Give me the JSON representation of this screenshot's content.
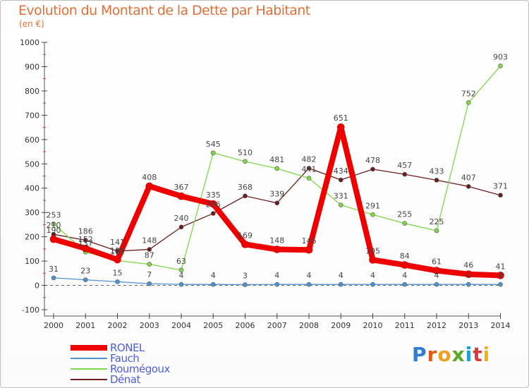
{
  "title": "Evolution du Montant de la Dette par Habitant",
  "subtitle": "(en €)",
  "logo": "Proxiti",
  "chart_data": {
    "type": "line",
    "x": [
      "2000",
      "2001",
      "2002",
      "2003",
      "2004",
      "2005",
      "2006",
      "2007",
      "2008",
      "2009",
      "2010",
      "2011",
      "2012",
      "2013",
      "2014"
    ],
    "ylim": [
      -100,
      1000
    ],
    "yticks": [
      "-100",
      "0",
      "100",
      "200",
      "300",
      "400",
      "500",
      "600",
      "700",
      "800",
      "900",
      "1000"
    ],
    "grid": false,
    "legend_position": "bottom-left",
    "series": [
      {
        "name": "Dénat",
        "color": "#6b1c1c",
        "values": [
          210,
          186,
          141,
          148,
          240,
          296,
          368,
          339,
          482,
          434,
          478,
          457,
          433,
          407,
          371
        ]
      },
      {
        "name": "Roumégoux",
        "color": "#7fd84a",
        "values": [
          253,
          137,
          102,
          87,
          63,
          545,
          510,
          481,
          441,
          331,
          291,
          255,
          225,
          752,
          903
        ]
      },
      {
        "name": "Fauch",
        "color": "#4f93cf",
        "values": [
          31,
          23,
          15,
          7,
          4,
          4,
          3,
          4,
          4,
          4,
          4,
          4,
          4,
          4,
          4
        ]
      },
      {
        "name": "RONEL",
        "color": "#ee0000",
        "values": [
          190,
          152,
          106,
          408,
          367,
          335,
          169,
          148,
          146,
          651,
          105,
          84,
          61,
          46,
          41
        ]
      }
    ],
    "legend_order": [
      "RONEL",
      "Fauch",
      "Roumégoux",
      "Dénat"
    ]
  }
}
